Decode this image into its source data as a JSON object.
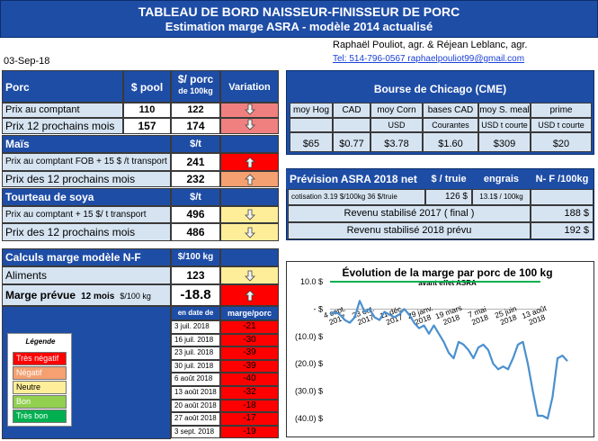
{
  "header": {
    "title": "TABLEAU DE BORD NAISSEUR-FINISSEUR DE PORC",
    "subtitle": "Estimation marge ASRA - modèle 2014 actualisé",
    "authors": "Raphaël Pouliot, agr.    &    Réjean Leblanc, agr.",
    "contact": "Tel:    514-796-0567   raphaelpouliot99@gmail.com",
    "date": "03-Sep-18"
  },
  "porc": {
    "title": "Porc",
    "col1": "$ pool",
    "col2a": "$/ porc",
    "col2b": "de 100kg",
    "col3": "Variation",
    "rows": [
      {
        "label": "Prix au comptant",
        "pool": "110",
        "porc": "122"
      },
      {
        "label": "Prix 12 prochains mois",
        "pool": "157",
        "porc": "174"
      }
    ]
  },
  "mais": {
    "title": "Maïs",
    "unit": "$/t",
    "rows": [
      {
        "label": "Prix au comptant  FOB + 15 $ /t transport",
        "value": "241"
      },
      {
        "label": "Prix des 12 prochains mois",
        "value": "232"
      }
    ]
  },
  "soya": {
    "title": "Tourteau de soya",
    "unit": "$/t",
    "rows": [
      {
        "label": "Prix au comptant + 15 $/ t  transport",
        "value": "496"
      },
      {
        "label": "Prix des 12 prochains mois",
        "value": "486"
      }
    ]
  },
  "calculs": {
    "title": "Calculs marge  modèle N-F",
    "unit": "$/100 kg",
    "aliments_label": "Aliments",
    "aliments_value": "123",
    "marge_label": "Marge prévue",
    "marge_sub": "12 mois",
    "marge_unit": "$/100 kg",
    "marge_value": "-18.8"
  },
  "history": {
    "col_date": "en date de",
    "col_marge": "marge/porc",
    "rows": [
      {
        "date": "3 juil. 2018",
        "value": "-21"
      },
      {
        "date": "16 juil. 2018",
        "value": "-30"
      },
      {
        "date": "23 juil. 2018",
        "value": "-39"
      },
      {
        "date": "30 juil. 2018",
        "value": "-39"
      },
      {
        "date": "6 août 2018",
        "value": "-40"
      },
      {
        "date": "13 août 2018",
        "value": "-32"
      },
      {
        "date": "20 août 2018",
        "value": "-18"
      },
      {
        "date": "27 août 2018",
        "value": "-17"
      },
      {
        "date": "3 sept. 2018",
        "value": "-19"
      }
    ]
  },
  "legend": {
    "title": "Légende",
    "items": [
      {
        "label": "Très négatif",
        "color": "#ff0000"
      },
      {
        "label": "Négatif",
        "color": "#f4a070"
      },
      {
        "label": "Neutre",
        "color": "#ffee99"
      },
      {
        "label": "Bon",
        "color": "#92d050"
      },
      {
        "label": "Très bon",
        "color": "#00b050"
      }
    ]
  },
  "chicago": {
    "title": "Bourse de Chicago (CME)",
    "headers": [
      "moy Hog",
      "CAD",
      "moy Corn",
      "bases CAD",
      "moy S. meal",
      "prime"
    ],
    "subheaders": [
      "",
      "",
      "USD",
      "Courantes",
      "USD t courte",
      "USD t courte"
    ],
    "values": [
      "$65",
      "$0.77",
      "$3.78",
      "$1.60",
      "$309",
      "$20"
    ]
  },
  "prevision": {
    "title": "Prévision ASRA 2018 net",
    "col1": "$ / truie",
    "col2": "engrais",
    "col3": "N- F /100kg",
    "cotisation_label": "cotisation 3.19 $/100kg  36 $/truie",
    "truie": "126  $",
    "engrais": "13.1$ / 100kg",
    "revenu2017_label": "Revenu stabilisé 2017 ( final )",
    "revenu2017_value": "188 $",
    "revenu2018_label": "Revenu stabilisé 2018 prévu",
    "revenu2018_value": "192 $"
  },
  "chart_data": {
    "type": "line",
    "title": "Évolution  de la marge par porc de 100 kg",
    "subtitle": "avant effet ASRA",
    "yticks": [
      "10.0 $",
      "-  $",
      "(10.0) $",
      "(20.0) $",
      "(30.0) $",
      "(40.0) $"
    ],
    "ylim": [
      -40,
      10
    ],
    "xtick_labels": [
      "4 sept. 2017",
      "23 oct. 2017",
      "11 déc. 2017",
      "29 janv. 2018",
      "19 mars 2018",
      "7 mai 2018",
      "25 juin 2018",
      "13 août 2018"
    ],
    "reference_line": 10,
    "series": [
      {
        "values": [
          -2,
          -1,
          -2,
          -4,
          -5,
          -3,
          3,
          -1,
          0,
          -3,
          -4,
          -1,
          -2,
          -3,
          -2,
          0,
          -2,
          -5,
          -7,
          -6,
          -9,
          -6,
          -9,
          -12,
          -16,
          -18,
          -12,
          -13,
          -15,
          -18,
          -14,
          -13,
          -15,
          -20,
          -22,
          -21,
          -22,
          -18,
          -13,
          -12,
          -20,
          -30,
          -39,
          -39,
          -40,
          -32,
          -18,
          -17,
          -19
        ],
        "color": "#4a90d0"
      }
    ],
    "grid": false
  },
  "colors": {
    "accent": "#1e4da6",
    "light": "#d6e4f2",
    "very_negative": "#ff0000",
    "negative": "#f4a070",
    "neutral": "#ffee99"
  }
}
